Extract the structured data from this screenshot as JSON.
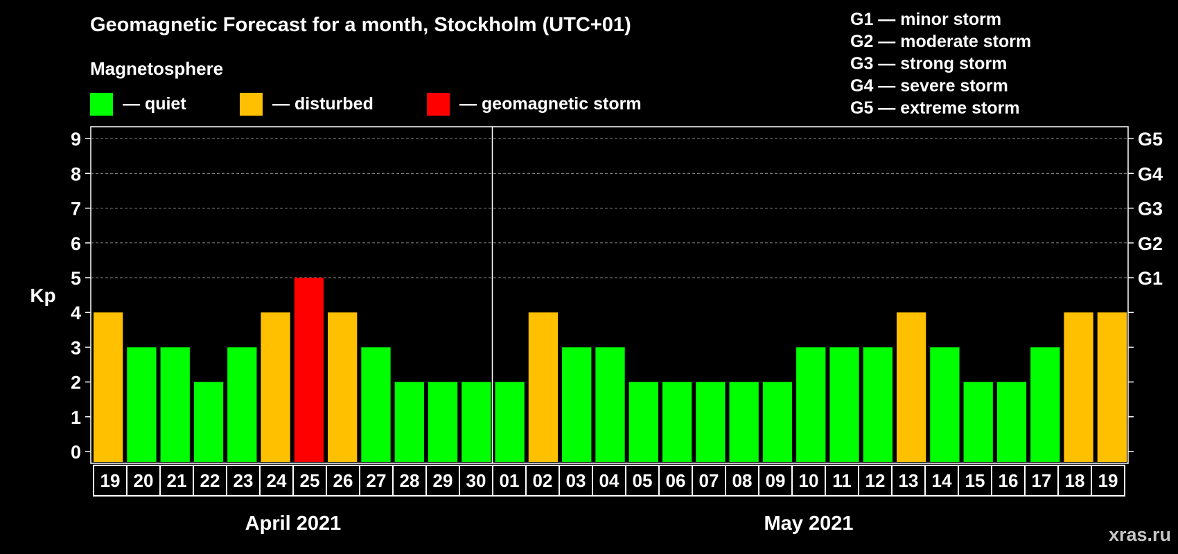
{
  "chart_data": {
    "type": "bar",
    "title": "Geomagnetic Forecast for a month, Stockholm (UTC+01)",
    "subtitle": "Magnetosphere",
    "ylabel": "Kp",
    "ylim": [
      0,
      9
    ],
    "yticks": [
      "0",
      "1",
      "2",
      "3",
      "4",
      "5",
      "6",
      "7",
      "8",
      "9"
    ],
    "right_axis_labels": [
      {
        "kp": 5,
        "label": "G1"
      },
      {
        "kp": 6,
        "label": "G2"
      },
      {
        "kp": 7,
        "label": "G3"
      },
      {
        "kp": 8,
        "label": "G4"
      },
      {
        "kp": 9,
        "label": "G5"
      }
    ],
    "categories": [
      "19",
      "20",
      "21",
      "22",
      "23",
      "24",
      "25",
      "26",
      "27",
      "28",
      "29",
      "30",
      "01",
      "02",
      "03",
      "04",
      "05",
      "06",
      "07",
      "08",
      "09",
      "10",
      "11",
      "12",
      "13",
      "14",
      "15",
      "16",
      "17",
      "18",
      "19"
    ],
    "values": [
      4,
      3,
      3,
      2,
      3,
      4,
      5,
      4,
      3,
      2,
      2,
      2,
      2,
      4,
      3,
      3,
      2,
      2,
      2,
      2,
      2,
      3,
      3,
      3,
      4,
      3,
      2,
      2,
      3,
      4,
      4
    ],
    "months": [
      {
        "label": "April 2021",
        "start_index": 0,
        "count": 12
      },
      {
        "label": "May 2021",
        "start_index": 12,
        "count": 19
      }
    ],
    "colors": {
      "quiet": "#00ff00",
      "disturbed": "#ffc000",
      "storm": "#ff0000"
    },
    "legend": [
      {
        "label": "— quiet",
        "color": "#00ff00"
      },
      {
        "label": "— disturbed",
        "color": "#ffc000"
      },
      {
        "label": "— geomagnetic storm",
        "color": "#ff0000"
      }
    ],
    "storm_scale": [
      "G1 — minor storm",
      "G2 — moderate storm",
      "G3 — strong storm",
      "G4 — severe storm",
      "G5 — extreme storm"
    ]
  },
  "watermark": "xras.ru"
}
